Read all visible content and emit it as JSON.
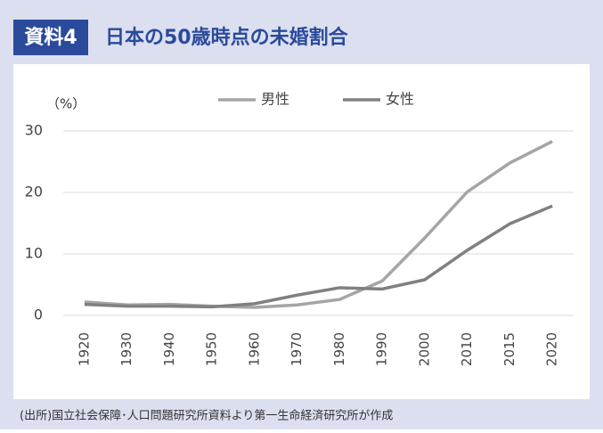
{
  "header": {
    "badge": "資料4",
    "title": "日本の50歳時点の未婚割合"
  },
  "source": "(出所)国立社会保障･人口問題研究所資料より第一生命経済研究所が作成",
  "chart_data": {
    "type": "line",
    "y_label": "（%）",
    "categories": [
      "1920",
      "1930",
      "1940",
      "1950",
      "1960",
      "1970",
      "1980",
      "1990",
      "2000",
      "2010",
      "2015",
      "2020"
    ],
    "series": [
      {
        "name": "男性",
        "color": "#a5a5a5",
        "values": [
          2.2,
          1.7,
          1.8,
          1.5,
          1.3,
          1.7,
          2.6,
          5.6,
          12.6,
          20.1,
          24.8,
          28.3
        ]
      },
      {
        "name": "女性",
        "color": "#808080",
        "values": [
          1.8,
          1.5,
          1.5,
          1.4,
          1.9,
          3.3,
          4.5,
          4.3,
          5.8,
          10.6,
          14.9,
          17.8
        ]
      }
    ],
    "ylim": [
      0,
      30
    ],
    "yticks": [
      0,
      10,
      20,
      30
    ],
    "grid": true,
    "legend": "top"
  }
}
